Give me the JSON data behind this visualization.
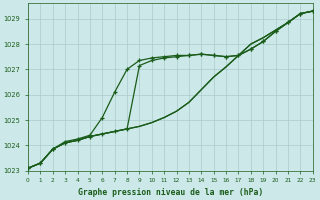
{
  "title": "Graphe pression niveau de la mer (hPa)",
  "xlim": [
    0,
    23
  ],
  "ylim": [
    1023,
    1029.6
  ],
  "yticks": [
    1023,
    1024,
    1025,
    1026,
    1027,
    1028,
    1029
  ],
  "xticks": [
    0,
    1,
    2,
    3,
    4,
    5,
    6,
    7,
    8,
    9,
    10,
    11,
    12,
    13,
    14,
    15,
    16,
    17,
    18,
    19,
    20,
    21,
    22,
    23
  ],
  "bg_color": "#cce8e8",
  "grid_color": "#aacccc",
  "line_color": "#1a5c1a",
  "series": [
    {
      "y": [
        1023.1,
        1023.3,
        1023.85,
        1024.1,
        1024.2,
        1024.35,
        1024.45,
        1024.55,
        1024.65,
        1024.75,
        1024.9,
        1025.1,
        1025.35,
        1025.7,
        1026.2,
        1026.7,
        1027.1,
        1027.55,
        1028.0,
        1028.25,
        1028.55,
        1028.85,
        1029.2,
        1029.3
      ],
      "marker": false,
      "lw": 0.9
    },
    {
      "y": [
        1023.1,
        1023.3,
        1023.85,
        1024.1,
        1024.2,
        1024.35,
        1024.45,
        1024.55,
        1024.65,
        1027.15,
        1027.35,
        1027.45,
        1027.5,
        1027.55,
        1027.6,
        1027.55,
        1027.5,
        1027.55,
        1027.8,
        1028.1,
        1028.5,
        1028.85,
        1029.2,
        1029.3
      ],
      "marker": true,
      "lw": 0.9
    },
    {
      "y": [
        1023.1,
        1023.3,
        1023.85,
        1024.15,
        1024.25,
        1024.4,
        1025.1,
        1026.1,
        1027.0,
        1027.35,
        1027.45,
        1027.5,
        1027.55,
        1027.55,
        1027.6,
        1027.55,
        1027.5,
        1027.55,
        1027.8,
        1028.1,
        1028.5,
        1028.85,
        1029.2,
        1029.3
      ],
      "marker": true,
      "lw": 0.9
    },
    {
      "y": [
        1023.1,
        1023.3,
        1023.85,
        1024.1,
        1024.2,
        1024.35,
        1024.45,
        1024.55,
        1024.65,
        1024.75,
        1024.9,
        1025.1,
        1025.35,
        1025.7,
        1026.2,
        1026.7,
        1027.1,
        1027.55,
        1028.0,
        1028.25,
        1028.55,
        1028.85,
        1029.2,
        1029.3
      ],
      "marker": false,
      "lw": 0.9
    }
  ],
  "marker_symbol": "+",
  "markersize": 3.5,
  "markeredgewidth": 0.9,
  "title_fontsize": 5.8,
  "tick_fontsize": 4.8,
  "tick_fontsize_x": 4.2
}
